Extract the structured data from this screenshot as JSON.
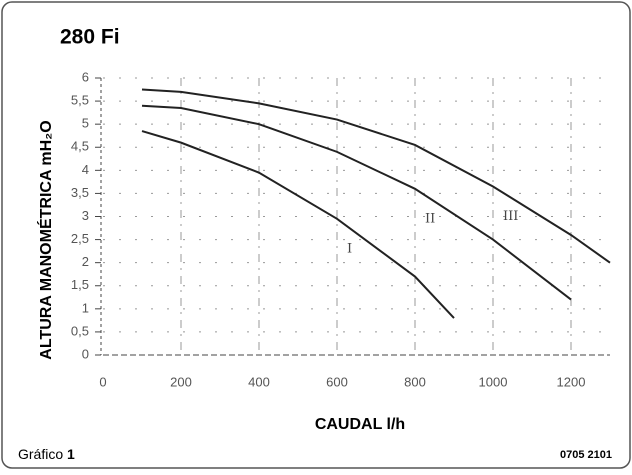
{
  "chart_data": {
    "type": "line",
    "title": "280 Fi",
    "y_label": "ALTURA MANOMÉTRICA mH₂O",
    "x_label": "CAUDAL l/h",
    "caption": "Gráfico",
    "caption_number": "1",
    "code": "0705 2101",
    "xlim": [
      0,
      1300
    ],
    "xticks": [
      0,
      200,
      400,
      600,
      800,
      1000,
      1200
    ],
    "ylim": [
      0,
      6
    ],
    "yticks": [
      0,
      {
        "value": 0.5,
        "label": "0,5"
      },
      1,
      {
        "value": 1.5,
        "label": "1,5"
      },
      2,
      {
        "value": 2.5,
        "label": "2,5"
      },
      3,
      {
        "value": 3.5,
        "label": "3,5"
      },
      4,
      {
        "value": 4.5,
        "label": "4,5"
      },
      5,
      {
        "value": 5.5,
        "label": "5,5"
      },
      6
    ],
    "grid": true,
    "series": [
      {
        "name": "I",
        "color": "#222222",
        "x": [
          100,
          200,
          400,
          600,
          800,
          900
        ],
        "values": [
          4.85,
          4.6,
          3.95,
          2.95,
          1.7,
          0.8
        ]
      },
      {
        "name": "II",
        "color": "#222222",
        "x": [
          100,
          200,
          400,
          600,
          800,
          1000,
          1200
        ],
        "values": [
          5.4,
          5.35,
          5.0,
          4.4,
          3.6,
          2.5,
          1.2
        ]
      },
      {
        "name": "III",
        "color": "#222222",
        "x": [
          100,
          200,
          400,
          600,
          800,
          1000,
          1200,
          1300
        ],
        "values": [
          5.75,
          5.7,
          5.45,
          5.1,
          4.55,
          3.65,
          2.6,
          2.0
        ]
      }
    ]
  }
}
